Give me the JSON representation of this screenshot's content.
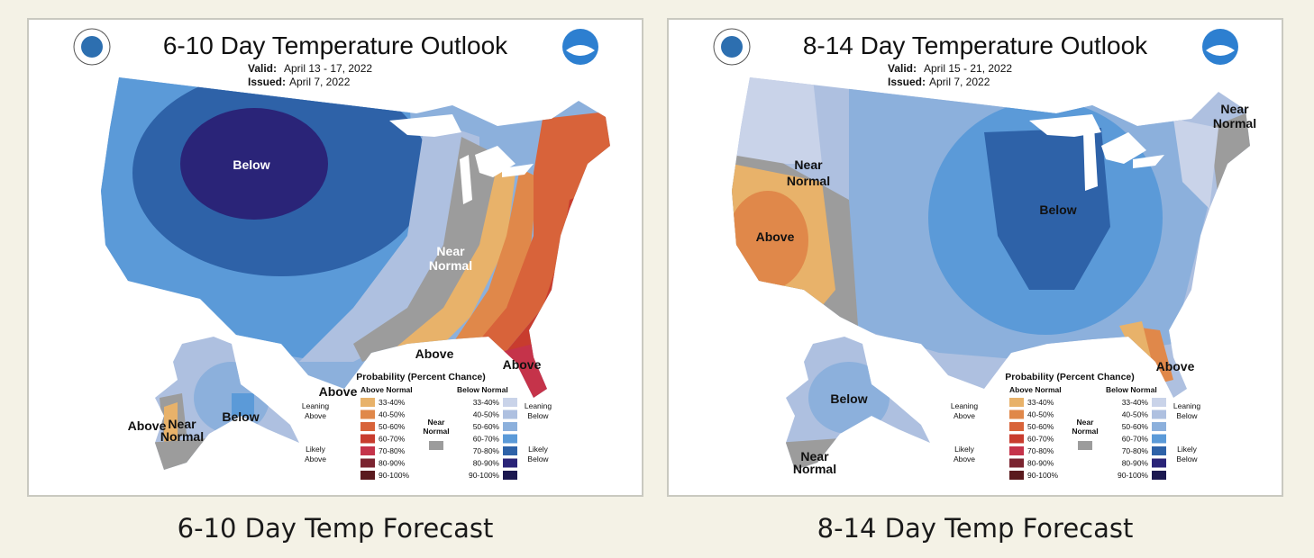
{
  "colors": {
    "above_33": "#e8b26a",
    "above_40": "#e0884a",
    "above_50": "#d8633a",
    "above_60": "#c83c2e",
    "above_70": "#c5334a",
    "above_80": "#7b2430",
    "above_90": "#5a1a1e",
    "near": "#9c9c9c",
    "below_33": "#c9d3e9",
    "below_40": "#aec0e0",
    "below_50": "#8cb0dc",
    "below_60": "#5b9ad8",
    "below_70": "#2e62a8",
    "below_80": "#2a2478",
    "below_90": "#1b1850",
    "page_bg": "#f4f2e6"
  },
  "legend": {
    "title": "Probability (Percent Chance)",
    "above_header": "Above Normal",
    "below_header": "Below Normal",
    "near_label_1": "Near",
    "near_label_2": "Normal",
    "leaning_above_1": "Leaning",
    "leaning_above_2": "Above",
    "likely_above_1": "Likely",
    "likely_above_2": "Above",
    "leaning_below_1": "Leaning",
    "leaning_below_2": "Below",
    "likely_below_1": "Likely",
    "likely_below_2": "Below",
    "ranges": [
      "33-40%",
      "40-50%",
      "50-60%",
      "60-70%",
      "70-80%",
      "80-90%",
      "90-100%"
    ]
  },
  "maps": [
    {
      "title": "6-10 Day Temperature Outlook",
      "valid_label": "Valid:",
      "valid_value": "April 13 - 17, 2022",
      "issued_label": "Issued:",
      "issued_value": "April 7, 2022",
      "caption": "6-10 Day Temp Forecast",
      "labels": {
        "below_main": "Below",
        "near_1": "Near",
        "near_2": "Normal",
        "above_gulf": "Above",
        "above_fl": "Above",
        "above_tx": "Above",
        "ak_above": "Above",
        "ak_near_1": "Near",
        "ak_near_2": "Normal",
        "ak_below": "Below"
      }
    },
    {
      "title": "8-14 Day Temperature Outlook",
      "valid_label": "Valid:",
      "valid_value": "April 15 - 21, 2022",
      "issued_label": "Issued:",
      "issued_value": "April 7, 2022",
      "caption": "8-14 Day Temp Forecast",
      "labels": {
        "near_w_1": "Near",
        "near_w_2": "Normal",
        "above_ca": "Above",
        "below_main": "Below",
        "near_ne_1": "Near",
        "near_ne_2": "Normal",
        "above_fl": "Above",
        "ak_below": "Below",
        "ak_near_1": "Near",
        "ak_near_2": "Normal"
      }
    }
  ]
}
